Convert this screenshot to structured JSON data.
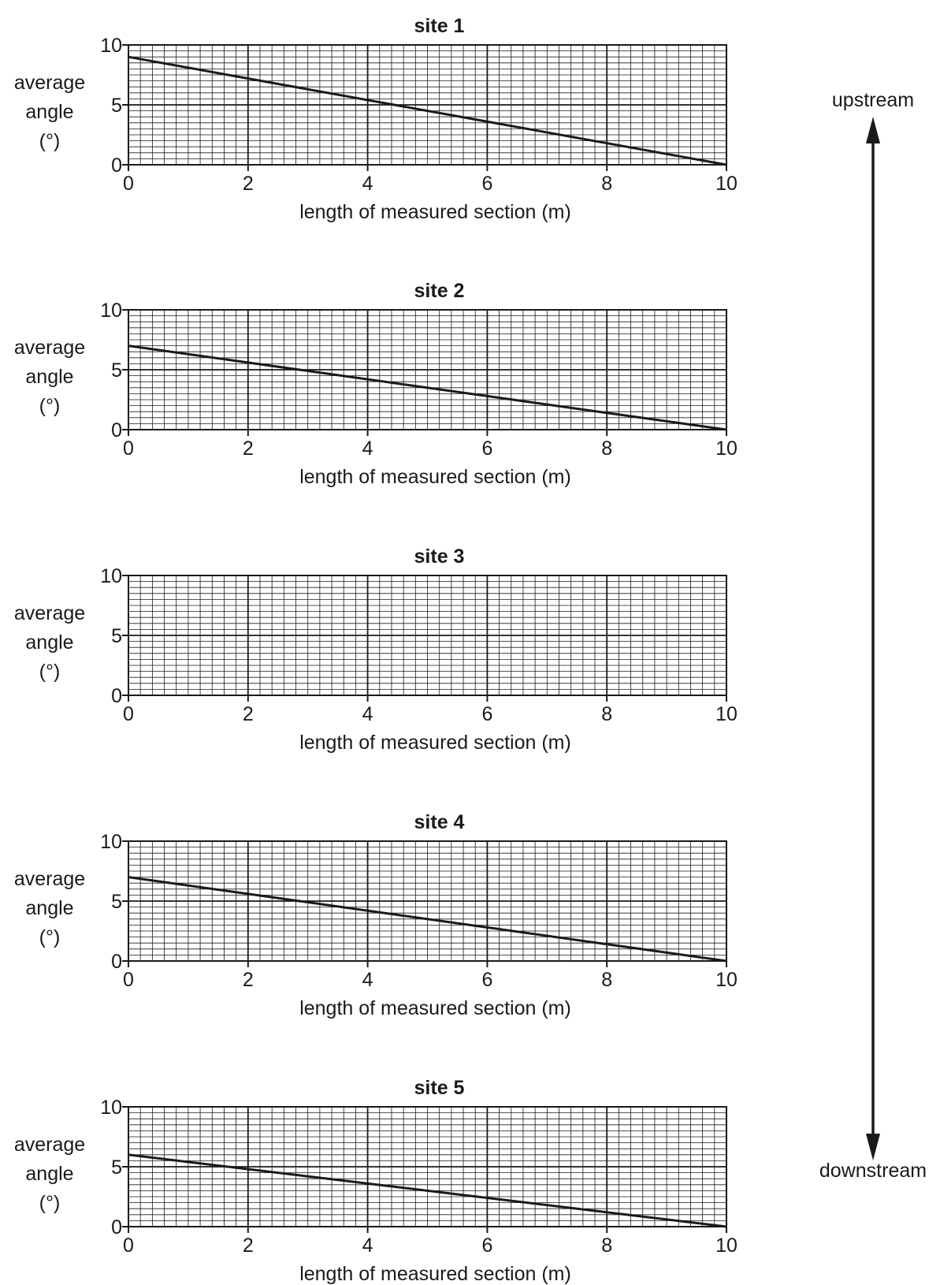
{
  "chart_data": [
    {
      "type": "line",
      "title": "site 1",
      "xlabel": "length of measured section (m)",
      "ylabel": [
        "average",
        "angle",
        "(°)"
      ],
      "xlim": [
        0,
        10
      ],
      "ylim": [
        0,
        10
      ],
      "xticks": [
        "0",
        "2",
        "4",
        "6",
        "8",
        "10"
      ],
      "yticks": [
        "0",
        "5",
        "10"
      ],
      "grid": true,
      "series": [
        {
          "x": [
            0,
            10
          ],
          "y": [
            9,
            0
          ]
        }
      ]
    },
    {
      "type": "line",
      "title": "site 2",
      "xlabel": "length of measured section (m)",
      "ylabel": [
        "average",
        "angle",
        "(°)"
      ],
      "xlim": [
        0,
        10
      ],
      "ylim": [
        0,
        10
      ],
      "xticks": [
        "0",
        "2",
        "4",
        "6",
        "8",
        "10"
      ],
      "yticks": [
        "0",
        "5",
        "10"
      ],
      "grid": true,
      "series": [
        {
          "x": [
            0,
            10
          ],
          "y": [
            7,
            0
          ]
        }
      ]
    },
    {
      "type": "line",
      "title": "site 3",
      "xlabel": "length of measured section (m)",
      "ylabel": [
        "average",
        "angle",
        "(°)"
      ],
      "xlim": [
        0,
        10
      ],
      "ylim": [
        0,
        10
      ],
      "xticks": [
        "0",
        "2",
        "4",
        "6",
        "8",
        "10"
      ],
      "yticks": [
        "0",
        "5",
        "10"
      ],
      "grid": true,
      "series": []
    },
    {
      "type": "line",
      "title": "site 4",
      "xlabel": "length of measured section (m)",
      "ylabel": [
        "average",
        "angle",
        "(°)"
      ],
      "xlim": [
        0,
        10
      ],
      "ylim": [
        0,
        10
      ],
      "xticks": [
        "0",
        "2",
        "4",
        "6",
        "8",
        "10"
      ],
      "yticks": [
        "0",
        "5",
        "10"
      ],
      "grid": true,
      "series": [
        {
          "x": [
            0,
            10
          ],
          "y": [
            7,
            0
          ]
        }
      ]
    },
    {
      "type": "line",
      "title": "site 5",
      "xlabel": "length of measured section (m)",
      "ylabel": [
        "average",
        "angle",
        "(°)"
      ],
      "xlim": [
        0,
        10
      ],
      "ylim": [
        0,
        10
      ],
      "xticks": [
        "0",
        "2",
        "4",
        "6",
        "8",
        "10"
      ],
      "yticks": [
        "0",
        "5",
        "10"
      ],
      "grid": true,
      "series": [
        {
          "x": [
            0,
            10
          ],
          "y": [
            6,
            0
          ]
        }
      ]
    }
  ],
  "flow_arrow": {
    "top_label": "upstream",
    "bottom_label": "downstream"
  },
  "colors": {
    "ink": "#1a1a1a",
    "grid": "#1a1a1a"
  }
}
